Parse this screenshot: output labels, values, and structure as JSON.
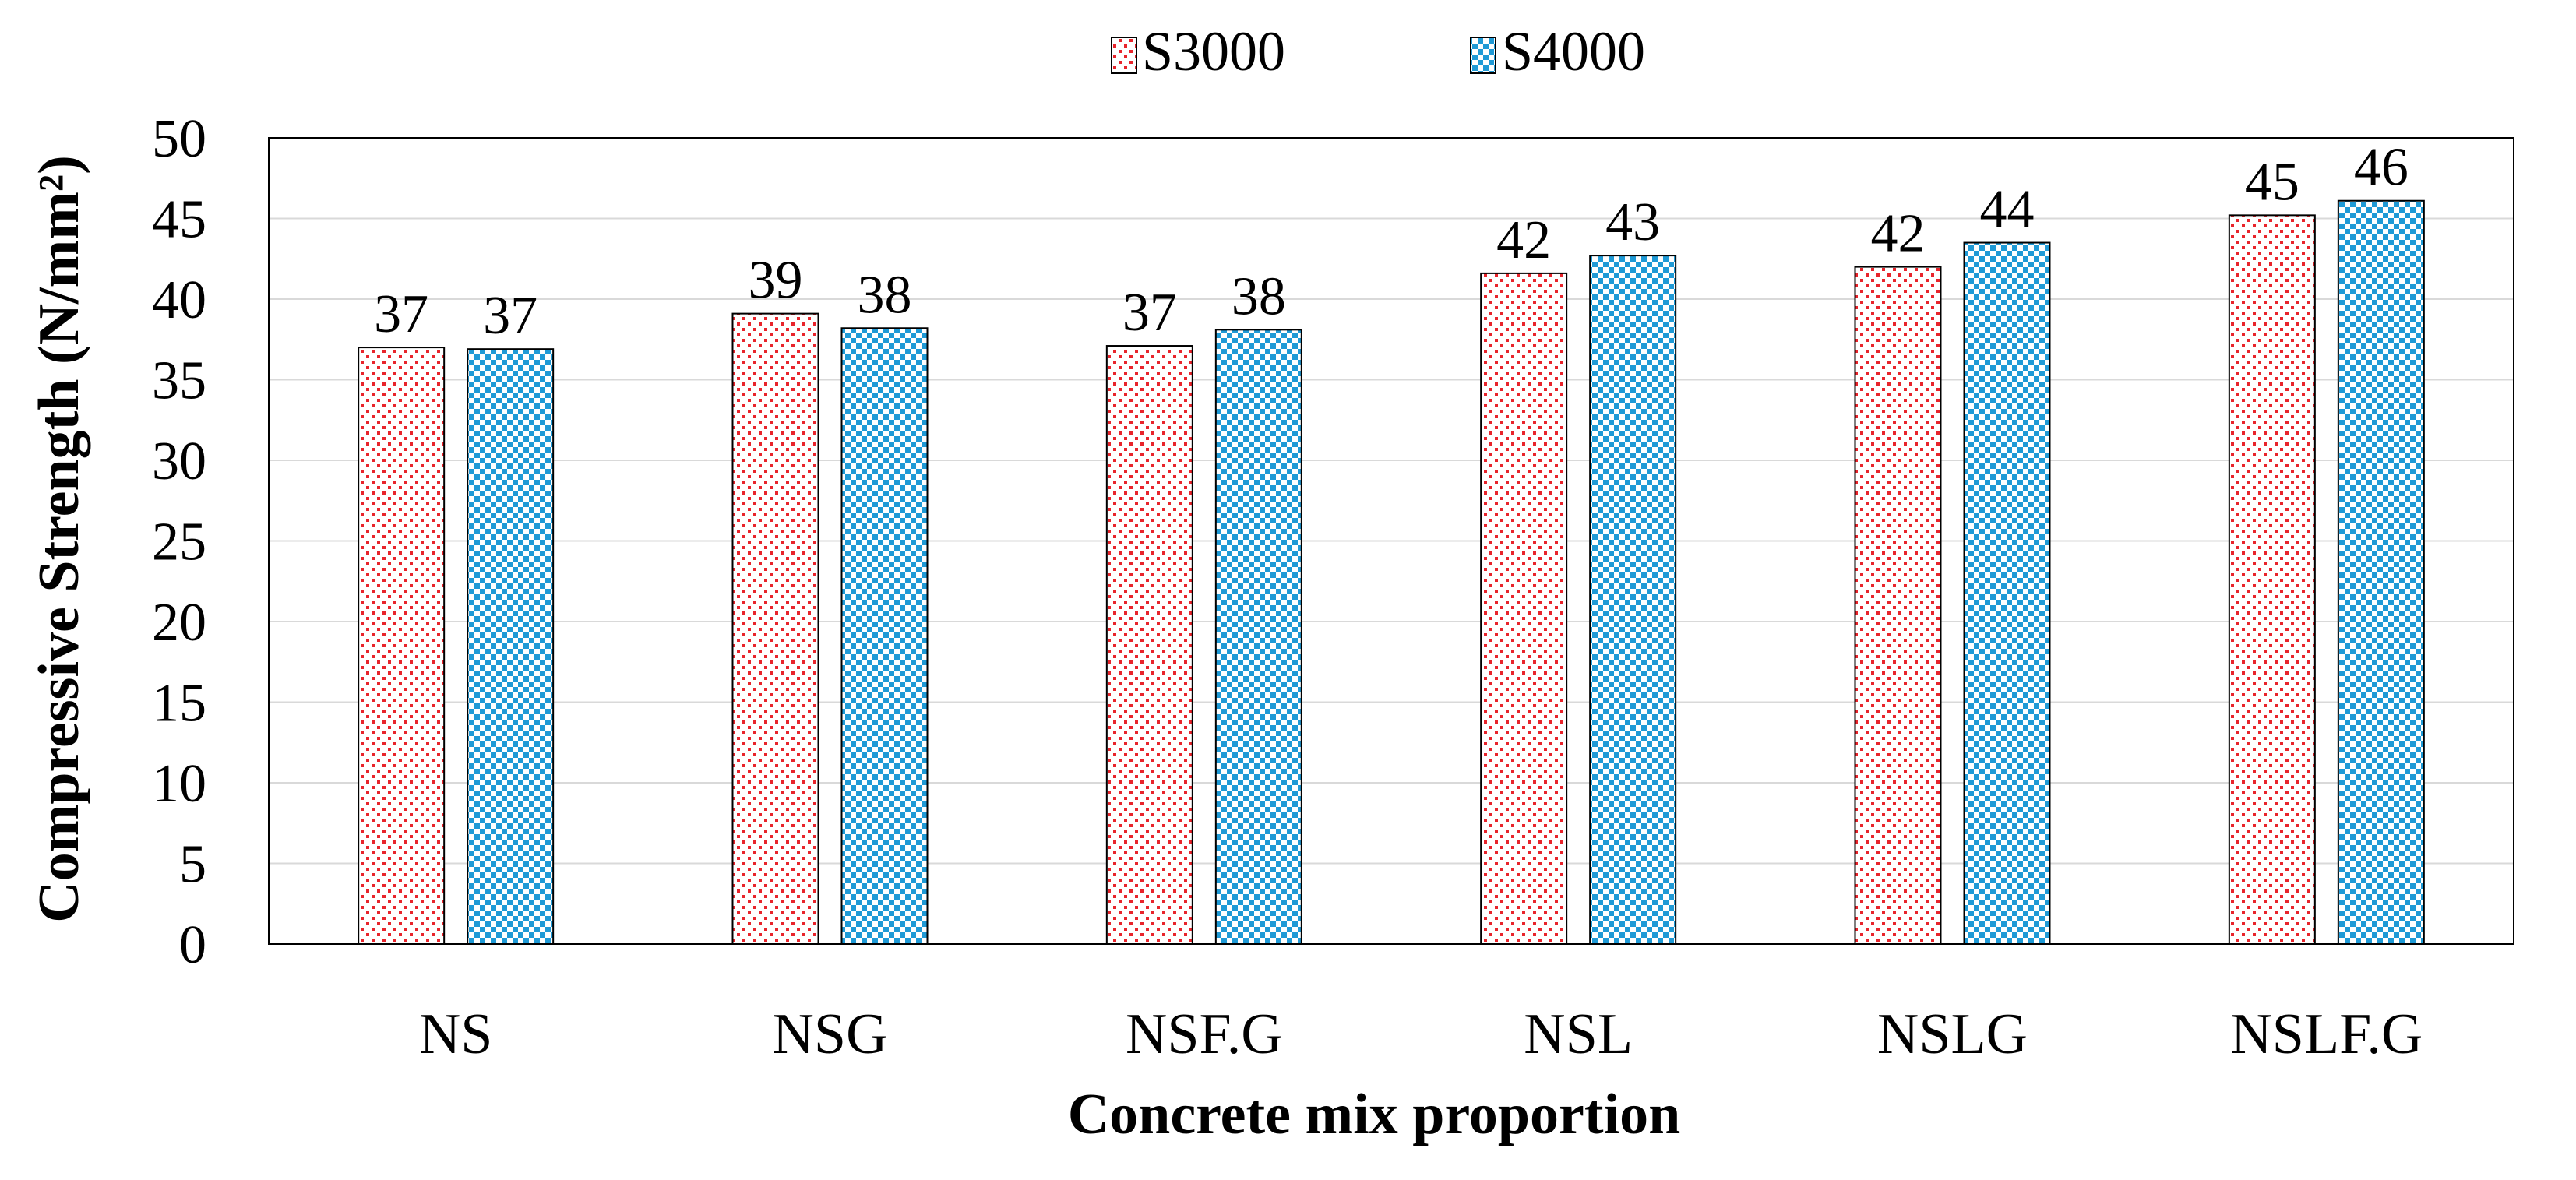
{
  "chart_data": {
    "type": "bar",
    "title": "",
    "xlabel": "Concrete mix proportion",
    "ylabel": "Compressive Strength (N/mm²)",
    "ylim": [
      0,
      50
    ],
    "yticks": [
      0,
      5,
      10,
      15,
      20,
      25,
      30,
      35,
      40,
      45,
      50
    ],
    "grid": true,
    "legend_position": "top-center",
    "categories": [
      "NS",
      "NSG",
      "NSF.G",
      "NSL",
      "NSLG",
      "NSLF.G"
    ],
    "series": [
      {
        "name": "S3000",
        "pattern": "red-dots",
        "color": "#e8242b",
        "values": [
          37.0,
          39.1,
          37.1,
          41.6,
          42.0,
          45.2
        ],
        "labels": [
          "37",
          "39",
          "37",
          "42",
          "42",
          "45"
        ]
      },
      {
        "name": "S4000",
        "pattern": "blue-checker",
        "color": "#1f9ad6",
        "values": [
          36.9,
          38.2,
          38.1,
          42.7,
          43.5,
          46.1
        ],
        "labels": [
          "37",
          "38",
          "38",
          "43",
          "44",
          "46"
        ]
      }
    ]
  }
}
